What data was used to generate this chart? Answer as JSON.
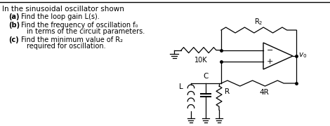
{
  "title_line": "In the sinusoidal oscillator shown",
  "items": [
    {
      "label": "(a)",
      "text": "Find the loop gain L(s)."
    },
    {
      "label": "(b)",
      "text": "Find the frequency of oscillation f₀"
    },
    {
      "label": "",
      "text": "in terms of the circuit parameters."
    },
    {
      "label": "(c)",
      "text": "Find the minimum value of R₂"
    },
    {
      "label": "",
      "text": "required for oscillation."
    }
  ],
  "background": "#ffffff",
  "text_color": "#000000",
  "title_fontsize": 7.5,
  "body_fontsize": 7.0,
  "label_fontsize": 7.0
}
